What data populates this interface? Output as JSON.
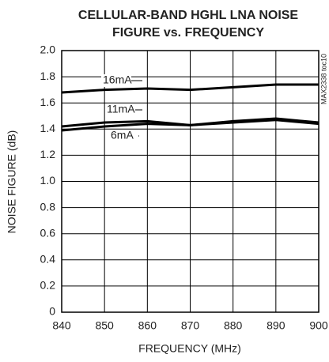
{
  "chart_data": {
    "type": "line",
    "title": "CELLULAR-BAND HGHL LNA NOISE",
    "subtitle": "FIGURE vs. FREQUENCY",
    "x_label": "FREQUENCY (MHz)",
    "y_label": "NOISE FIGURE (dB)",
    "annotation": "MAX2338 toc10",
    "x": [
      840,
      850,
      860,
      870,
      880,
      890,
      900
    ],
    "series": [
      {
        "name": "16mA",
        "color": "#000000",
        "values": [
          1.68,
          1.7,
          1.71,
          1.7,
          1.72,
          1.74,
          1.74
        ]
      },
      {
        "name": "11mA",
        "color": "#000000",
        "values": [
          1.42,
          1.45,
          1.46,
          1.43,
          1.46,
          1.48,
          1.45
        ]
      },
      {
        "name": "6mA",
        "color": "#000000",
        "values": [
          1.39,
          1.42,
          1.44,
          1.43,
          1.45,
          1.47,
          1.44
        ]
      }
    ],
    "xlim": [
      840,
      900
    ],
    "xticks": [
      840,
      850,
      860,
      870,
      880,
      890,
      900
    ],
    "ylim": [
      0,
      2
    ],
    "yticks": [
      0,
      0.2,
      0.4,
      0.6,
      0.8,
      {
        "value": 1,
        "label": "1.0"
      },
      1.2,
      1.4,
      1.6,
      1.8,
      {
        "value": 2,
        "label": "2.0"
      }
    ],
    "grid": true
  }
}
